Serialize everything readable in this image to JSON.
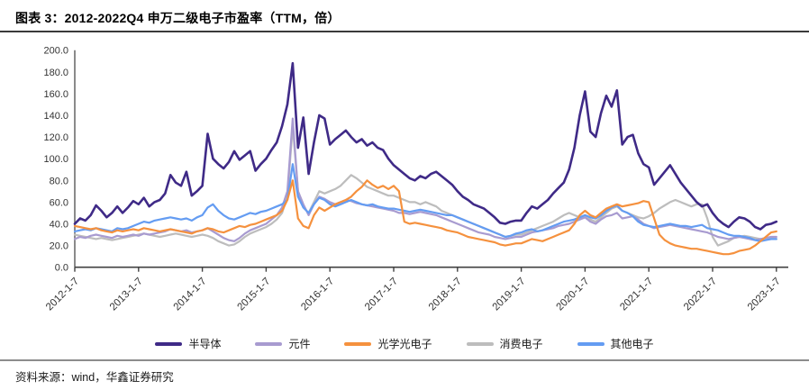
{
  "title": "图表 3：2012-2022Q4 申万二级电子市盈率（TTM，倍）",
  "source_note": "资料来源：wind，华鑫证券研究",
  "chart_data": {
    "type": "line",
    "title": "2012-2022Q4 申万二级电子市盈率（TTM，倍）",
    "xlabel": "",
    "ylabel": "",
    "ylim": [
      0,
      200
    ],
    "y_tick_step": 20,
    "y_tick_labels": [
      "0.0",
      "20.0",
      "40.0",
      "60.0",
      "80.0",
      "100.0",
      "120.0",
      "140.0",
      "160.0",
      "180.0",
      "200.0"
    ],
    "x_tick_labels": [
      "2012-1-7",
      "2013-1-7",
      "2014-1-7",
      "2015-1-7",
      "2016-1-7",
      "2017-1-7",
      "2018-1-7",
      "2019-1-7",
      "2020-1-7",
      "2021-1-7",
      "2022-1-7",
      "2023-1-7"
    ],
    "x_start": "2012-01",
    "x_end": "2023-01",
    "x_interval": "monthly",
    "grid": false,
    "legend_position": "bottom",
    "series": [
      {
        "name": "半导体",
        "color": "#3F2A87",
        "values": [
          40,
          45,
          43,
          48,
          57,
          52,
          46,
          50,
          56,
          50,
          55,
          61,
          58,
          64,
          56,
          60,
          62,
          68,
          85,
          78,
          75,
          88,
          66,
          70,
          75,
          123,
          100,
          95,
          91,
          97,
          107,
          99,
          103,
          107,
          89,
          95,
          100,
          108,
          115,
          130,
          150,
          188,
          110,
          138,
          86,
          115,
          140,
          137,
          113,
          118,
          122,
          126,
          120,
          115,
          118,
          112,
          115,
          110,
          108,
          100,
          94,
          90,
          86,
          82,
          80,
          84,
          82,
          86,
          88,
          84,
          80,
          76,
          70,
          65,
          62,
          58,
          56,
          54,
          50,
          46,
          41,
          40,
          42,
          43,
          43,
          50,
          56,
          54,
          58,
          62,
          68,
          73,
          78,
          90,
          110,
          140,
          162,
          125,
          120,
          142,
          158,
          148,
          163,
          113,
          120,
          122,
          105,
          95,
          92,
          76,
          82,
          88,
          94,
          86,
          78,
          72,
          66,
          60,
          56,
          58,
          50,
          44,
          40,
          37,
          42,
          46,
          45,
          42,
          37,
          35,
          39,
          40,
          42
        ]
      },
      {
        "name": "元件",
        "color": "#A89BD0",
        "values": [
          26,
          28,
          27,
          29,
          30,
          29,
          28,
          27,
          29,
          28,
          29,
          30,
          29,
          31,
          30,
          31,
          32,
          33,
          35,
          34,
          33,
          34,
          32,
          33,
          34,
          36,
          33,
          30,
          27,
          25,
          24,
          27,
          31,
          34,
          36,
          38,
          40,
          44,
          48,
          55,
          70,
          137,
          70,
          58,
          48,
          58,
          65,
          63,
          60,
          58,
          60,
          62,
          61,
          59,
          58,
          57,
          56,
          55,
          54,
          53,
          52,
          50,
          50,
          49,
          50,
          51,
          50,
          49,
          48,
          46,
          44,
          42,
          40,
          38,
          36,
          34,
          32,
          31,
          30,
          28,
          27,
          26,
          27,
          28,
          28,
          30,
          32,
          33,
          34,
          35,
          36,
          38,
          39,
          40,
          42,
          44,
          46,
          42,
          40,
          44,
          47,
          48,
          50,
          45,
          46,
          47,
          44,
          40,
          38,
          36,
          37,
          38,
          39,
          38,
          37,
          36,
          35,
          34,
          33,
          32,
          30,
          28,
          27,
          26,
          27,
          28,
          27,
          26,
          25,
          26,
          27,
          28,
          28
        ]
      },
      {
        "name": "光学光电子",
        "color": "#F5913E",
        "values": [
          38,
          37,
          36,
          35,
          36,
          34,
          33,
          32,
          34,
          33,
          34,
          35,
          34,
          36,
          35,
          34,
          33,
          34,
          35,
          34,
          33,
          32,
          31,
          33,
          34,
          36,
          35,
          33,
          32,
          34,
          36,
          38,
          37,
          39,
          40,
          42,
          44,
          46,
          48,
          52,
          62,
          80,
          45,
          38,
          36,
          48,
          55,
          52,
          55,
          58,
          60,
          62,
          65,
          70,
          74,
          80,
          76,
          73,
          75,
          72,
          75,
          70,
          42,
          40,
          41,
          40,
          39,
          38,
          37,
          36,
          34,
          33,
          32,
          30,
          28,
          27,
          26,
          25,
          24,
          23,
          21,
          20,
          21,
          22,
          22,
          24,
          26,
          25,
          24,
          26,
          28,
          30,
          32,
          34,
          40,
          48,
          52,
          48,
          46,
          50,
          54,
          56,
          58,
          56,
          57,
          58,
          59,
          61,
          60,
          45,
          30,
          25,
          22,
          20,
          19,
          18,
          17,
          17,
          16,
          15,
          14,
          13,
          12,
          12,
          13,
          15,
          16,
          17,
          20,
          24,
          28,
          32,
          33
        ]
      },
      {
        "name": "消费电子",
        "color": "#BDBDBD",
        "values": [
          30,
          29,
          28,
          27,
          26,
          27,
          26,
          25,
          26,
          27,
          28,
          29,
          30,
          31,
          30,
          29,
          28,
          29,
          30,
          31,
          30,
          29,
          28,
          29,
          30,
          29,
          27,
          24,
          22,
          20,
          21,
          24,
          28,
          31,
          33,
          35,
          37,
          40,
          44,
          50,
          65,
          130,
          70,
          55,
          50,
          60,
          70,
          68,
          70,
          72,
          75,
          80,
          85,
          82,
          78,
          74,
          72,
          70,
          68,
          66,
          66,
          64,
          62,
          60,
          60,
          58,
          60,
          58,
          56,
          52,
          50,
          48,
          46,
          44,
          42,
          40,
          38,
          36,
          34,
          32,
          30,
          28,
          29,
          30,
          30,
          32,
          34,
          36,
          38,
          40,
          42,
          45,
          48,
          50,
          48,
          46,
          48,
          44,
          42,
          46,
          50,
          54,
          56,
          52,
          50,
          48,
          46,
          45,
          47,
          50,
          54,
          57,
          60,
          62,
          60,
          58,
          56,
          58,
          58,
          45,
          28,
          20,
          22,
          24,
          27,
          28,
          29,
          28,
          27,
          26,
          27,
          26,
          26
        ]
      },
      {
        "name": "其他电子",
        "color": "#649CF2",
        "values": [
          33,
          34,
          35,
          34,
          36,
          35,
          34,
          33,
          36,
          35,
          36,
          38,
          40,
          42,
          41,
          43,
          44,
          45,
          46,
          45,
          44,
          45,
          43,
          46,
          48,
          55,
          58,
          52,
          48,
          45,
          44,
          46,
          48,
          50,
          49,
          51,
          52,
          54,
          56,
          58,
          62,
          95,
          65,
          55,
          50,
          58,
          64,
          62,
          58,
          56,
          58,
          60,
          62,
          60,
          58,
          57,
          58,
          56,
          55,
          54,
          54,
          53,
          52,
          51,
          52,
          53,
          52,
          51,
          50,
          49,
          48,
          48,
          46,
          44,
          42,
          40,
          38,
          36,
          34,
          32,
          30,
          28,
          29,
          31,
          32,
          34,
          35,
          33,
          34,
          36,
          38,
          40,
          42,
          43,
          44,
          46,
          48,
          46,
          45,
          48,
          52,
          55,
          57,
          52,
          50,
          47,
          42,
          39,
          38,
          37,
          38,
          39,
          40,
          39,
          38,
          38,
          37,
          38,
          39,
          36,
          35,
          34,
          32,
          30,
          29,
          29,
          28,
          27,
          25,
          24,
          25,
          26,
          26
        ]
      }
    ]
  }
}
